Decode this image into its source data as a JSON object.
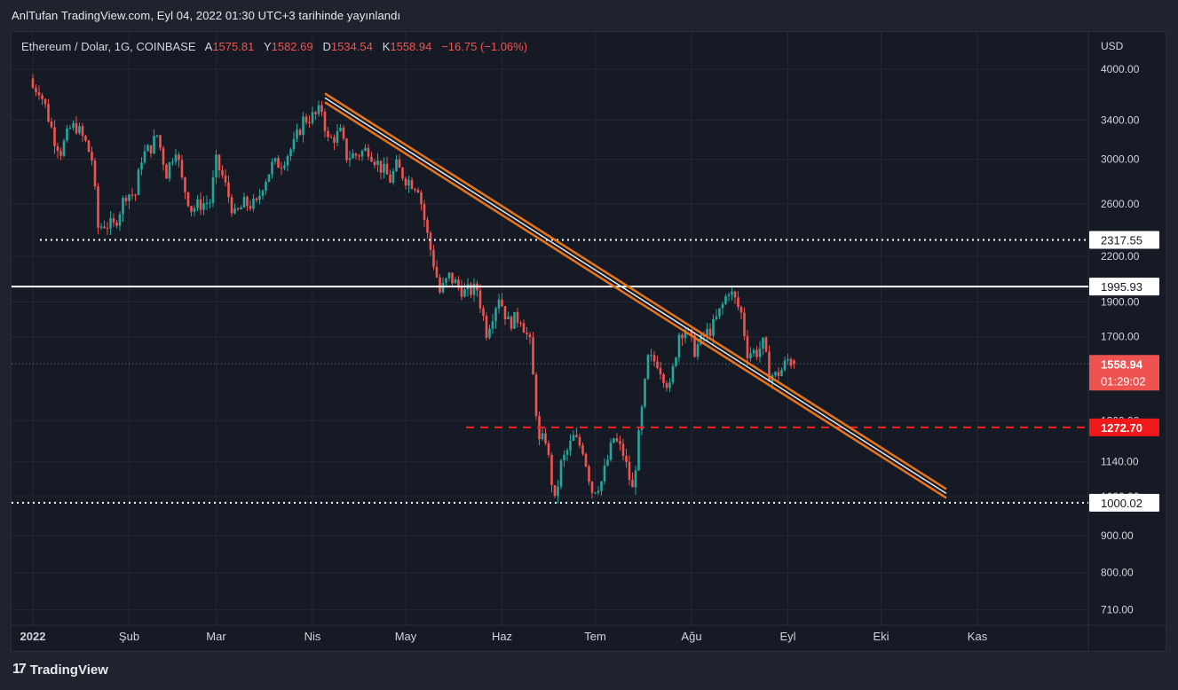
{
  "publisher": "AnlTufan TradingView.com, Eyl 04, 2022 01:30 UTC+3 tarihinde yayınlandı",
  "legend": {
    "symbol": "Ethereum / Dolar, 1G, COINBASE",
    "open_label": "A",
    "open": "1575.81",
    "high_label": "Y",
    "high": "1582.69",
    "low_label": "D",
    "low": "1534.54",
    "close_label": "K",
    "close": "1558.94",
    "change": "−16.75 (−1.06%)"
  },
  "brand": "TradingView",
  "colors": {
    "up": "#26a69a",
    "down": "#ef5350",
    "trendline": "#e8751a",
    "background": "#161a25"
  },
  "chart_data": {
    "type": "candlestick",
    "currency": "USD",
    "yscale": "log",
    "ylim": [
      660,
      4300
    ],
    "y_ticks": [
      4000,
      3400,
      3000,
      2600,
      2200,
      1900,
      1700,
      1300,
      1140,
      1020,
      900,
      800,
      710
    ],
    "y_tick_labels": [
      "4000.00",
      "3400.00",
      "3000.00",
      "2600.00",
      "2200.00",
      "1900.00",
      "1700.00",
      "1300.00",
      "1140.00",
      "1020.00",
      "900.00",
      "800.00",
      "710.00"
    ],
    "x_labels": [
      "2022",
      "Şub",
      "Mar",
      "Nis",
      "May",
      "Haz",
      "Tem",
      "Ağu",
      "Eyl",
      "Eki",
      "Kas"
    ],
    "x_label_dates": [
      "2022-01-01",
      "2022-02-01",
      "2022-03-01",
      "2022-04-01",
      "2022-05-01",
      "2022-06-01",
      "2022-07-01",
      "2022-08-01",
      "2022-09-01",
      "2022-10-01",
      "2022-11-01"
    ],
    "price_series_approx": [
      [
        "2022-01-01",
        3770
      ],
      [
        "2022-01-03",
        3760
      ],
      [
        "2022-01-05",
        3550
      ],
      [
        "2022-01-08",
        3200
      ],
      [
        "2022-01-10",
        3080
      ],
      [
        "2022-01-13",
        3310
      ],
      [
        "2022-01-15",
        3330
      ],
      [
        "2022-01-18",
        3160
      ],
      [
        "2022-01-20",
        3000
      ],
      [
        "2022-01-22",
        2410
      ],
      [
        "2022-01-24",
        2440
      ],
      [
        "2022-01-27",
        2420
      ],
      [
        "2022-01-31",
        2690
      ],
      [
        "2022-02-03",
        2680
      ],
      [
        "2022-02-05",
        3020
      ],
      [
        "2022-02-08",
        3120
      ],
      [
        "2022-02-10",
        3240
      ],
      [
        "2022-02-13",
        2870
      ],
      [
        "2022-02-16",
        3120
      ],
      [
        "2022-02-18",
        2800
      ],
      [
        "2022-02-21",
        2560
      ],
      [
        "2022-02-24",
        2600
      ],
      [
        "2022-02-27",
        2620
      ],
      [
        "2022-03-01",
        2970
      ],
      [
        "2022-03-03",
        2840
      ],
      [
        "2022-03-07",
        2500
      ],
      [
        "2022-03-10",
        2600
      ],
      [
        "2022-03-14",
        2590
      ],
      [
        "2022-03-16",
        2770
      ],
      [
        "2022-03-19",
        2940
      ],
      [
        "2022-03-22",
        2970
      ],
      [
        "2022-03-26",
        3140
      ],
      [
        "2022-03-29",
        3400
      ],
      [
        "2022-04-02",
        3450
      ],
      [
        "2022-04-04",
        3520
      ],
      [
        "2022-04-06",
        3180
      ],
      [
        "2022-04-10",
        3260
      ],
      [
        "2022-04-12",
        3030
      ],
      [
        "2022-04-15",
        3040
      ],
      [
        "2022-04-19",
        3100
      ],
      [
        "2022-04-22",
        2960
      ],
      [
        "2022-04-26",
        2810
      ],
      [
        "2022-04-28",
        2930
      ],
      [
        "2022-05-01",
        2820
      ],
      [
        "2022-05-05",
        2750
      ],
      [
        "2022-05-08",
        2350
      ],
      [
        "2022-05-11",
        2060
      ],
      [
        "2022-05-12",
        1960
      ],
      [
        "2022-05-15",
        2060
      ],
      [
        "2022-05-20",
        1960
      ],
      [
        "2022-05-24",
        1980
      ],
      [
        "2022-05-27",
        1730
      ],
      [
        "2022-05-31",
        1940
      ],
      [
        "2022-06-03",
        1780
      ],
      [
        "2022-06-07",
        1810
      ],
      [
        "2022-06-10",
        1660
      ],
      [
        "2022-06-13",
        1210
      ],
      [
        "2022-06-15",
        1230
      ],
      [
        "2022-06-18",
        1000
      ],
      [
        "2022-06-20",
        1130
      ],
      [
        "2022-06-24",
        1230
      ],
      [
        "2022-06-27",
        1190
      ],
      [
        "2022-06-30",
        1040
      ],
      [
        "2022-07-03",
        1070
      ],
      [
        "2022-07-07",
        1230
      ],
      [
        "2022-07-10",
        1170
      ],
      [
        "2022-07-13",
        1040
      ],
      [
        "2022-07-16",
        1340
      ],
      [
        "2022-07-18",
        1580
      ],
      [
        "2022-07-21",
        1570
      ],
      [
        "2022-07-25",
        1440
      ],
      [
        "2022-07-28",
        1720
      ],
      [
        "2022-07-30",
        1750
      ],
      [
        "2022-08-02",
        1630
      ],
      [
        "2022-08-05",
        1700
      ],
      [
        "2022-08-08",
        1760
      ],
      [
        "2022-08-11",
        1880
      ],
      [
        "2022-08-13",
        1980
      ],
      [
        "2022-08-15",
        1910
      ],
      [
        "2022-08-17",
        1830
      ],
      [
        "2022-08-19",
        1620
      ],
      [
        "2022-08-22",
        1620
      ],
      [
        "2022-08-24",
        1660
      ],
      [
        "2022-08-26",
        1510
      ],
      [
        "2022-08-28",
        1500
      ],
      [
        "2022-08-30",
        1530
      ],
      [
        "2022-09-01",
        1580
      ],
      [
        "2022-09-03",
        1560
      ]
    ],
    "horizontal_levels": [
      {
        "price": 2317.55,
        "label": "2317.55",
        "style": "dotted",
        "color": "#ffffff"
      },
      {
        "price": 1995.93,
        "label": "1995.93",
        "style": "solid",
        "color": "#ffffff"
      },
      {
        "price": 1272.7,
        "label": "1272.70",
        "style": "dashed",
        "color": "#ff1e1e"
      },
      {
        "price": 1000.02,
        "label": "1000.02",
        "style": "dotted",
        "color": "#ffffff"
      }
    ],
    "last_price": {
      "label": "1558.94",
      "countdown": "01:29:02",
      "color": "#ef5350"
    },
    "trendline_channel": {
      "from": [
        "2022-04-05",
        3650
      ],
      "to": [
        "2022-10-22",
        1030
      ]
    }
  }
}
